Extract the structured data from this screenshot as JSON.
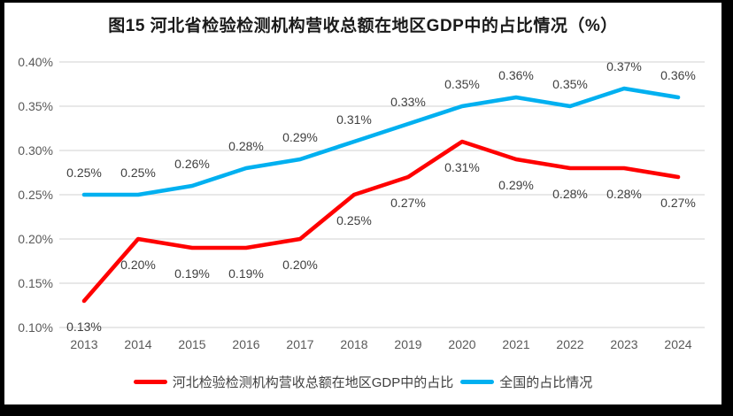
{
  "title": "图15 河北省检验检测机构营收总额在地区GDP中的占比情况（%）",
  "chart_data": {
    "type": "line",
    "x_labels": [
      "2013",
      "2014",
      "2015",
      "2016",
      "2017",
      "2018",
      "2019",
      "2020",
      "2021",
      "2022",
      "2023",
      "2024"
    ],
    "series": [
      {
        "id": "hebei",
        "name": "河北检验检测机构营收总额在地区GDP中的占比",
        "color": "#FF0000",
        "label_position": "below",
        "values": [
          0.13,
          0.2,
          0.19,
          0.19,
          0.2,
          0.25,
          0.27,
          0.31,
          0.29,
          0.28,
          0.28,
          0.27
        ],
        "labels": [
          "0.13%",
          "0.20%",
          "0.19%",
          "0.19%",
          "0.20%",
          "0.25%",
          "0.27%",
          "0.31%",
          "0.29%",
          "0.28%",
          "0.28%",
          "0.27%"
        ]
      },
      {
        "id": "national",
        "name": "全国的占比情况",
        "color": "#00B0F0",
        "label_position": "above",
        "values": [
          0.25,
          0.25,
          0.26,
          0.28,
          0.29,
          0.31,
          0.33,
          0.35,
          0.36,
          0.35,
          0.37,
          0.36
        ],
        "labels": [
          "0.25%",
          "0.25%",
          "0.26%",
          "0.28%",
          "0.29%",
          "0.31%",
          "0.33%",
          "0.35%",
          "0.36%",
          "0.35%",
          "0.37%",
          "0.36%"
        ]
      }
    ],
    "ylim": [
      0.1,
      0.4
    ],
    "ytick_step": 0.05,
    "yticks": [
      "0.40%",
      "0.35%",
      "0.30%",
      "0.25%",
      "0.20%",
      "0.15%",
      "0.10%"
    ],
    "unit": "%",
    "grid": true,
    "legend_position": "bottom",
    "colors": {
      "gridline": "#D9D9D9",
      "axis_text": "#595959",
      "data_label": "#404040",
      "legend_text": "#3f3f3f",
      "title_text": "#1a1a1a",
      "frame": "#000000",
      "background": "#FFFFFF"
    }
  }
}
